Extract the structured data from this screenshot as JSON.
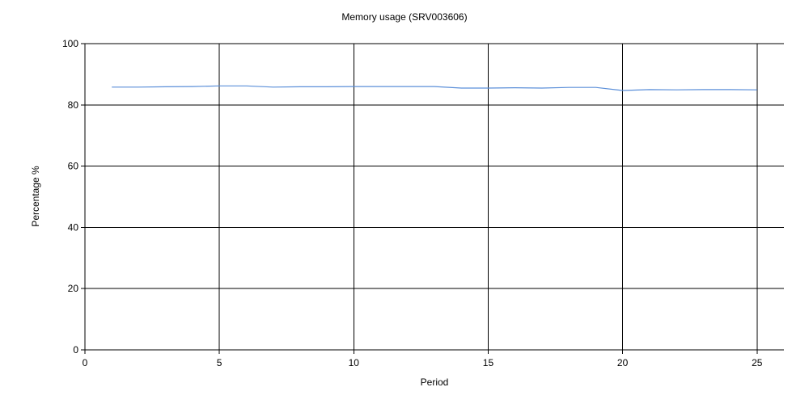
{
  "chart_data": {
    "type": "line",
    "title": "Memory usage (SRV003606)",
    "xlabel": "Period",
    "ylabel": "Percentage %",
    "xlim": [
      0,
      26
    ],
    "ylim": [
      0,
      100
    ],
    "xticks": [
      0,
      5,
      10,
      15,
      20,
      25
    ],
    "yticks": [
      0,
      20,
      40,
      60,
      80,
      100
    ],
    "grid": true,
    "series": [
      {
        "color": "#5B8FD9",
        "x": [
          1,
          2,
          3,
          4,
          5,
          6,
          7,
          8,
          9,
          10,
          11,
          12,
          13,
          14,
          15,
          16,
          17,
          18,
          19,
          20,
          21,
          22,
          23,
          24,
          25
        ],
        "values": [
          85.8,
          85.8,
          85.9,
          86.0,
          86.2,
          86.2,
          85.8,
          85.9,
          85.9,
          86.0,
          86.0,
          86.0,
          86.0,
          85.5,
          85.5,
          85.6,
          85.5,
          85.7,
          85.7,
          84.7,
          85.0,
          84.9,
          85.0,
          85.0,
          84.9
        ]
      }
    ]
  }
}
